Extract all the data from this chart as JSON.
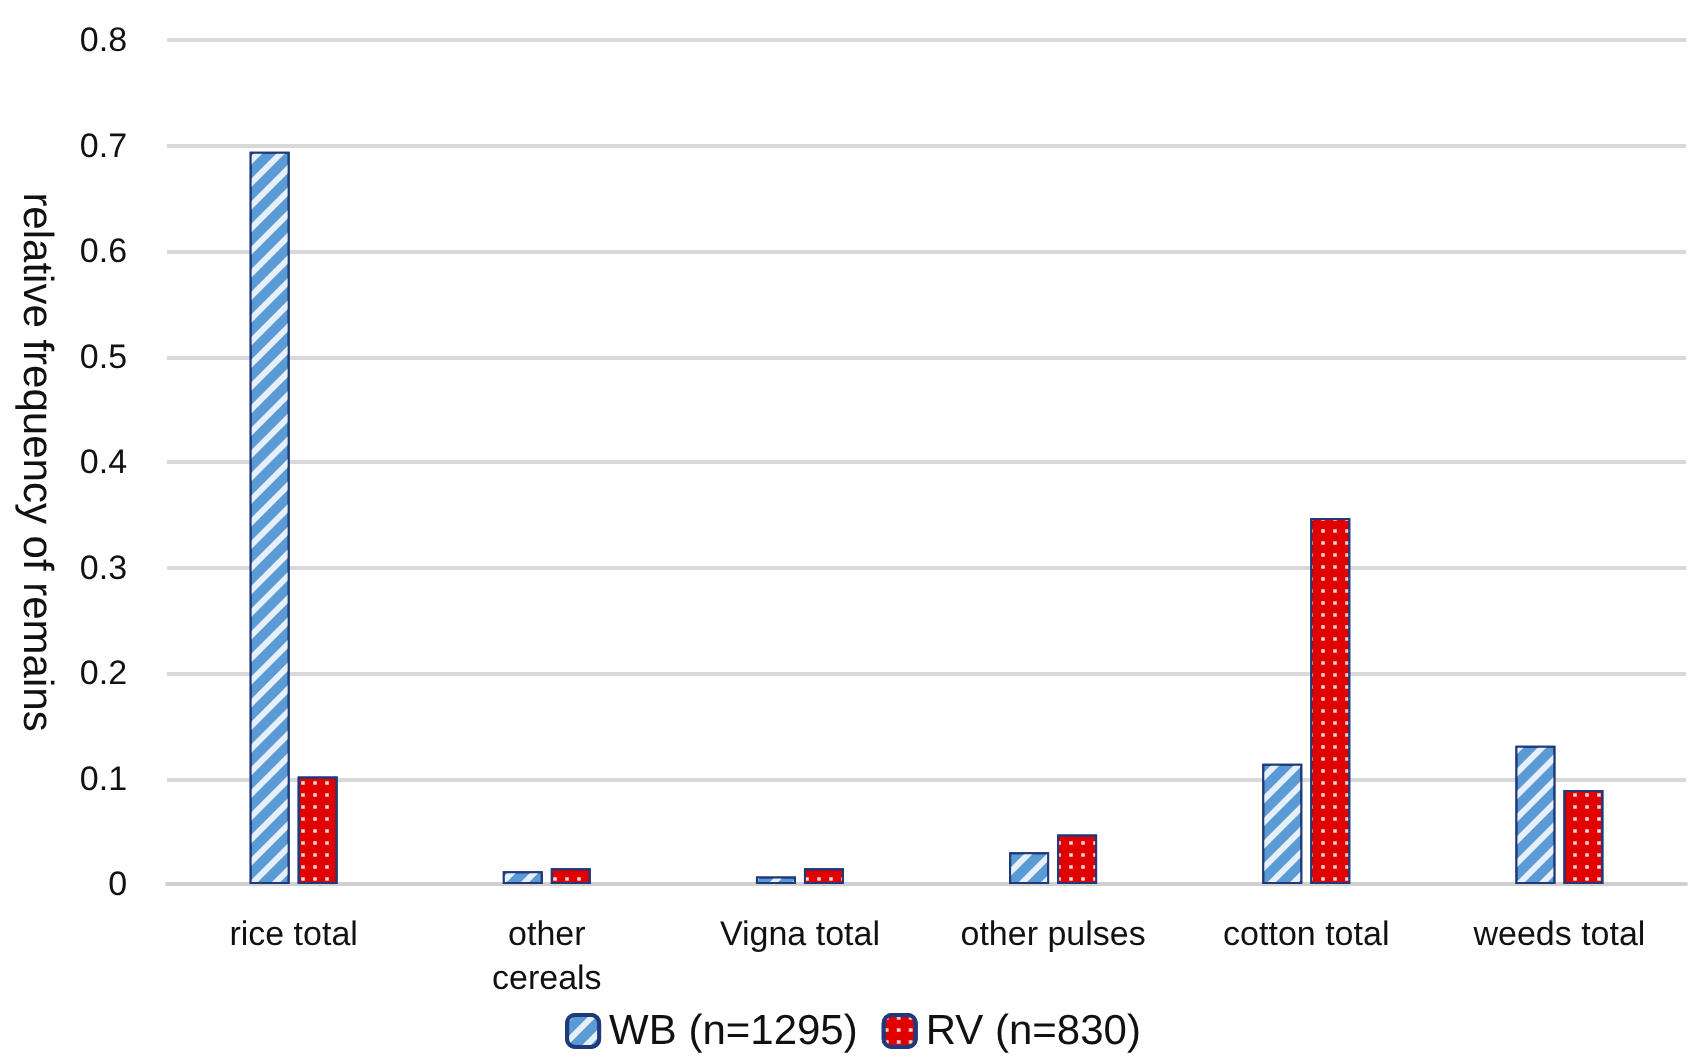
{
  "chart_data": {
    "type": "bar",
    "ylabel": "relative frequency of remains",
    "categories": [
      "rice total",
      "other\ncereals",
      "Vigna total",
      "other pulses",
      "cotton total",
      "weeds total"
    ],
    "series": [
      {
        "name": "WB (n=1295)",
        "color": "#5b9bd5",
        "values": [
          0.694,
          0.012,
          0.007,
          0.03,
          0.114,
          0.131
        ]
      },
      {
        "name": "RV (n=830)",
        "color": "#e00000",
        "values": [
          0.102,
          0.015,
          0.015,
          0.047,
          0.347,
          0.089
        ]
      }
    ],
    "ylim": [
      0,
      0.8
    ],
    "yticks": [
      0,
      0.1,
      0.2,
      0.3,
      0.4,
      0.5,
      0.6,
      0.7,
      0.8
    ],
    "grid": "y",
    "legend": "bottom"
  }
}
